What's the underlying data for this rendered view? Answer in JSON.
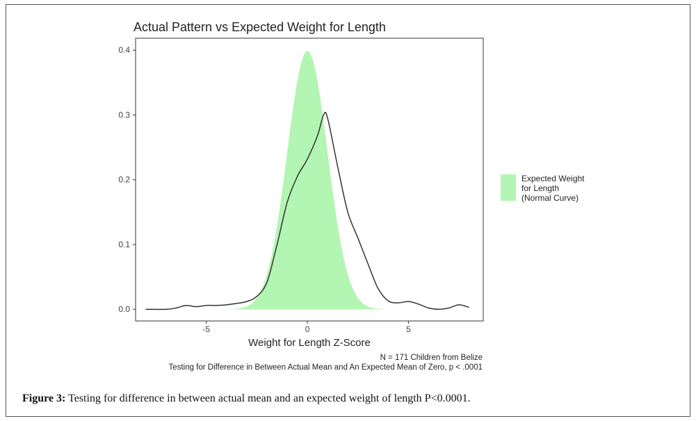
{
  "chart_data": {
    "type": "area",
    "title": "Actual Pattern vs Expected Weight for Length",
    "xlabel": "Weight for Length Z-Score",
    "ylabel": "",
    "xlim": [
      -8.5,
      8.7
    ],
    "ylim": [
      -0.018,
      0.4185
    ],
    "x_ticks": [
      -5,
      0,
      5
    ],
    "x_tick_labels": [
      "-5",
      "0",
      "5"
    ],
    "y_ticks": [
      0.0,
      0.1,
      0.2,
      0.3,
      0.4
    ],
    "y_tick_labels": [
      "0.0",
      "0.1",
      "0.2",
      "0.3",
      "0.4"
    ],
    "grid": false,
    "legend": {
      "position": "right",
      "entries": [
        {
          "label": "Expected Weight\nfor Length\n(Normal Curve)",
          "color": "#b3f5b3"
        }
      ]
    },
    "series": [
      {
        "kind": "area",
        "curve": "normal",
        "mean": 0,
        "sd": 1,
        "x_range": [
          -4.5,
          4.5
        ],
        "color": "#b3f5b3"
      },
      {
        "kind": "line",
        "color": "#333333",
        "x": [
          -8.0,
          -7.0,
          -6.5,
          -6.0,
          -5.5,
          -5.0,
          -4.5,
          -4.0,
          -3.5,
          -3.0,
          -2.5,
          -2.0,
          -1.5,
          -1.0,
          -0.5,
          0.0,
          0.5,
          0.8,
          1.0,
          1.5,
          2.0,
          2.5,
          3.0,
          3.5,
          4.0,
          4.5,
          5.0,
          5.5,
          6.0,
          6.5,
          7.0,
          7.5,
          8.0
        ],
        "values": [
          0.0,
          0.0,
          0.002,
          0.006,
          0.004,
          0.006,
          0.006,
          0.007,
          0.009,
          0.012,
          0.02,
          0.042,
          0.1,
          0.165,
          0.205,
          0.232,
          0.268,
          0.3,
          0.295,
          0.22,
          0.15,
          0.11,
          0.07,
          0.032,
          0.013,
          0.01,
          0.012,
          0.008,
          0.002,
          0.0,
          0.002,
          0.007,
          0.003
        ]
      }
    ],
    "notes": [
      "N = 171 Children from Belize",
      "Testing for Difference in Between Actual Mean and An Expected Mean of Zero, p < .0001"
    ]
  },
  "caption": {
    "label": "Figure 3:",
    "text": " Testing for difference in between actual mean and an expected weight of length P<0.0001."
  }
}
